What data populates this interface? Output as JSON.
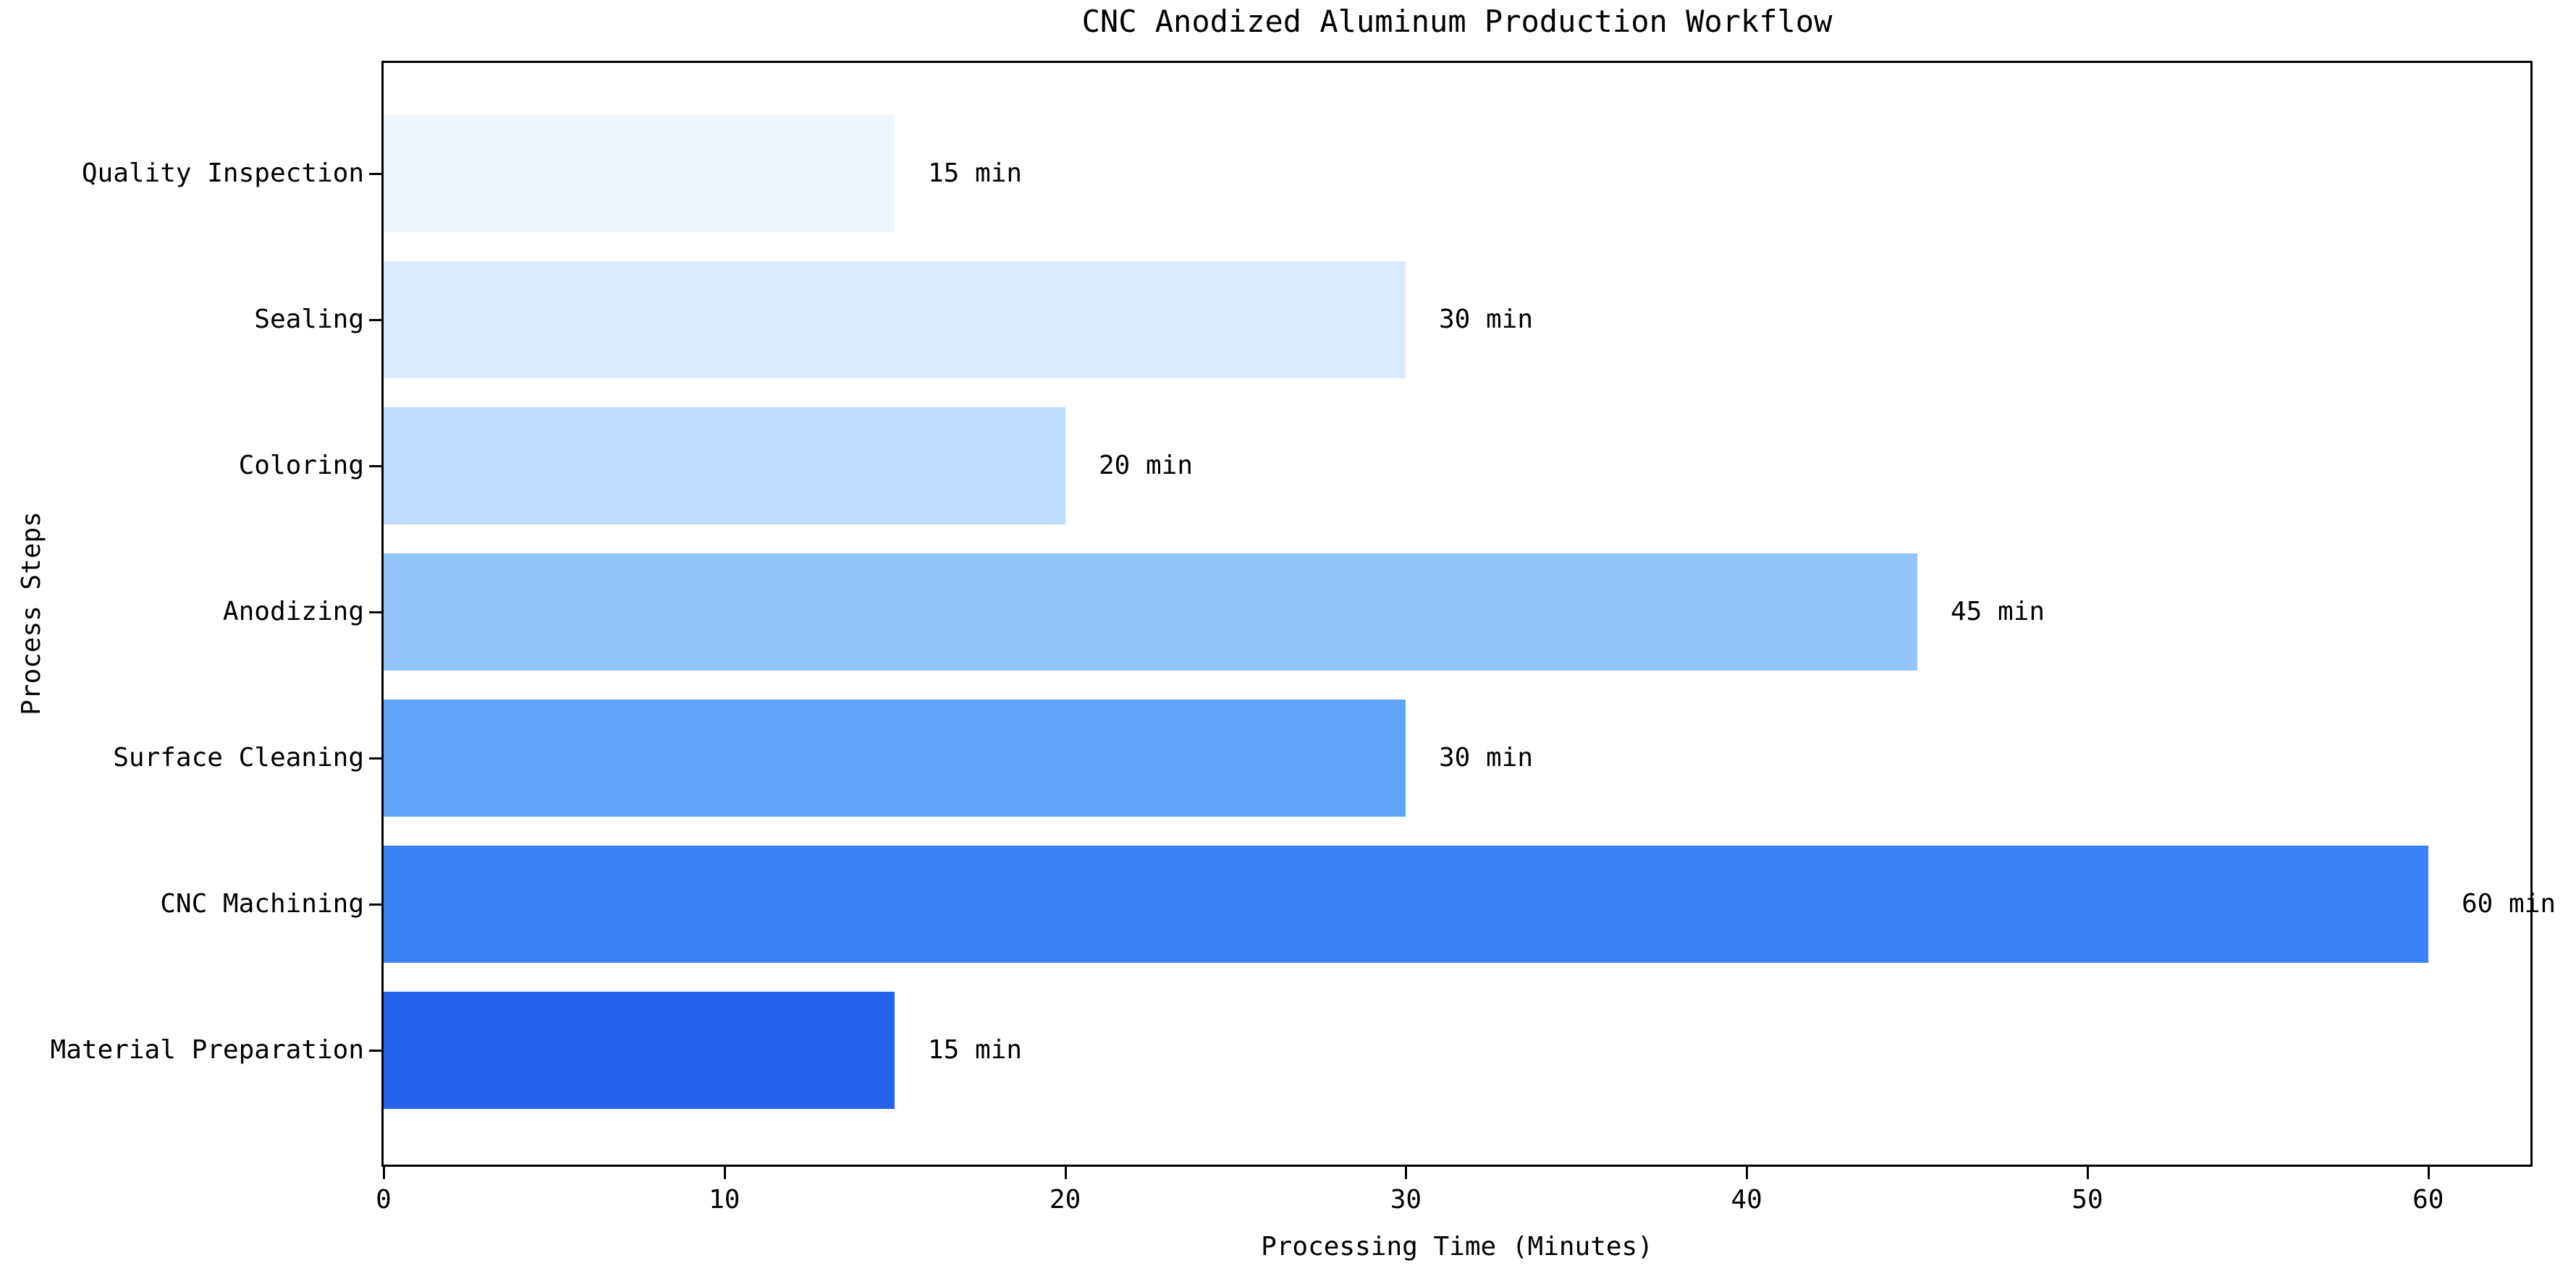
{
  "chart_data": {
    "type": "bar",
    "orientation": "horizontal",
    "title": "CNC Anodized Aluminum Production Workflow",
    "xlabel": "Processing Time (Minutes)",
    "ylabel": "Process Steps",
    "categories_top_to_bottom": [
      "Quality Inspection",
      "Sealing",
      "Coloring",
      "Anodizing",
      "Surface Cleaning",
      "CNC Machining",
      "Material Preparation"
    ],
    "values": [
      15,
      30,
      20,
      45,
      30,
      60,
      15
    ],
    "bar_labels": [
      "15 min",
      "30 min",
      "20 min",
      "45 min",
      "30 min",
      "60 min",
      "15 min"
    ],
    "bar_colors": [
      "#eff6ff",
      "#dbeafe",
      "#bfdbfe",
      "#93c5fd",
      "#60a5fa",
      "#3b82f6",
      "#2563eb"
    ],
    "xticks": [
      0,
      10,
      20,
      30,
      40,
      50,
      60
    ],
    "xlim": [
      0,
      63
    ],
    "grid": false,
    "legend": false,
    "spine_color": "#000000",
    "background_color": "#ffffff"
  }
}
